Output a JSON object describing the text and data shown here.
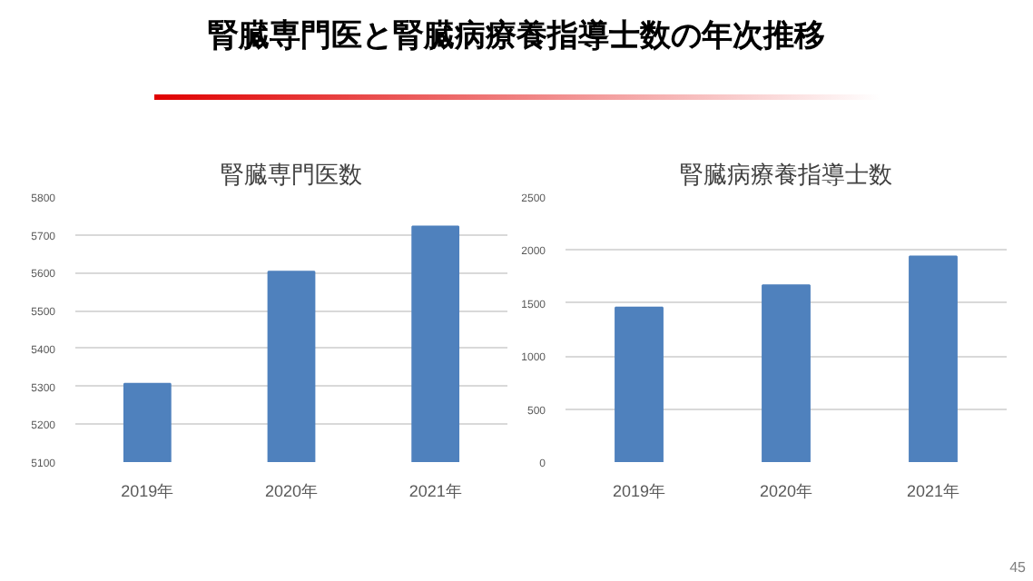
{
  "chart_data": [
    {
      "type": "bar",
      "title": "腎臓専門医数",
      "categories": [
        "2019年",
        "2020年",
        "2021年"
      ],
      "values": [
        5307,
        5603,
        5722
      ],
      "color": "#4f81bd",
      "ylim": [
        5100,
        5800
      ],
      "yticks": [
        5100,
        5200,
        5300,
        5400,
        5500,
        5600,
        5700,
        5800
      ],
      "grid": "y",
      "annotations": [
        "腎臓専門医と腎臓病療養指導士数の年次推移"
      ]
    },
    {
      "type": "bar",
      "title": "腎臓病療養指導士数",
      "categories": [
        "2019年",
        "2020年",
        "2021年"
      ],
      "values": [
        1457,
        1667,
        1939
      ],
      "color": "#4f81bd",
      "ylim": [
        0,
        2500
      ],
      "yticks": [
        0,
        500,
        1000,
        1500,
        2000,
        2500
      ],
      "grid": "y",
      "annotations": [
        "45"
      ]
    }
  ]
}
